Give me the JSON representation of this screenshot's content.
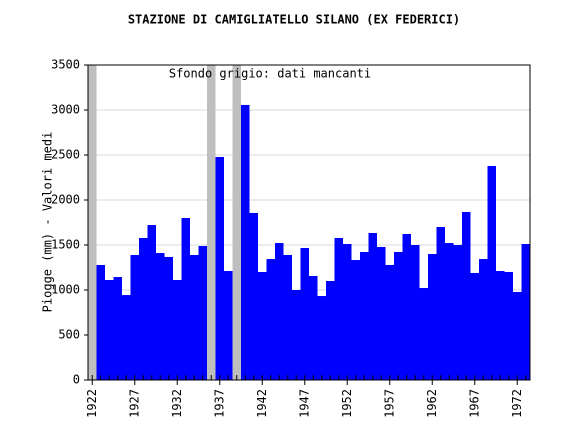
{
  "chart_data": {
    "type": "bar",
    "title": "STAZIONE DI CAMIGLIATELLO SILANO (EX FEDERICI)",
    "y_label": "Piogge (mm) - Valori medi",
    "annotation": "Sfondo grigio: dati mancanti",
    "x": [
      1922,
      1923,
      1924,
      1925,
      1926,
      1927,
      1928,
      1929,
      1930,
      1931,
      1932,
      1933,
      1934,
      1935,
      1936,
      1937,
      1938,
      1939,
      1940,
      1941,
      1942,
      1943,
      1944,
      1945,
      1946,
      1947,
      1948,
      1949,
      1950,
      1951,
      1952,
      1953,
      1954,
      1955,
      1956,
      1957,
      1958,
      1959,
      1960,
      1961,
      1962,
      1963,
      1964,
      1965,
      1966,
      1967,
      1968,
      1969,
      1970,
      1971,
      1972,
      1973
    ],
    "values": [
      null,
      1278,
      1111,
      1144,
      944,
      1389,
      1578,
      1722,
      1411,
      1367,
      1111,
      1800,
      1389,
      1489,
      null,
      2478,
      1211,
      null,
      3056,
      1856,
      1200,
      1344,
      1522,
      1389,
      1000,
      1467,
      1156,
      933,
      1100,
      1578,
      1511,
      1333,
      1422,
      1633,
      1478,
      1278,
      1422,
      1622,
      1500,
      1022,
      1400,
      1700,
      1522,
      1500,
      1867,
      1189,
      1344,
      2378,
      1211,
      1200,
      978,
      1511
    ],
    "color": "#0000ff",
    "missing_color": "#bebebe",
    "xlim": [
      1921.5,
      1973.5
    ],
    "xticks": [
      1922,
      1927,
      1932,
      1937,
      1942,
      1947,
      1952,
      1957,
      1962,
      1967,
      1972
    ],
    "ylim": [
      0,
      3500
    ],
    "yticks": [
      0,
      500,
      1000,
      1500,
      2000,
      2500,
      3000,
      3500
    ],
    "grid": true
  }
}
